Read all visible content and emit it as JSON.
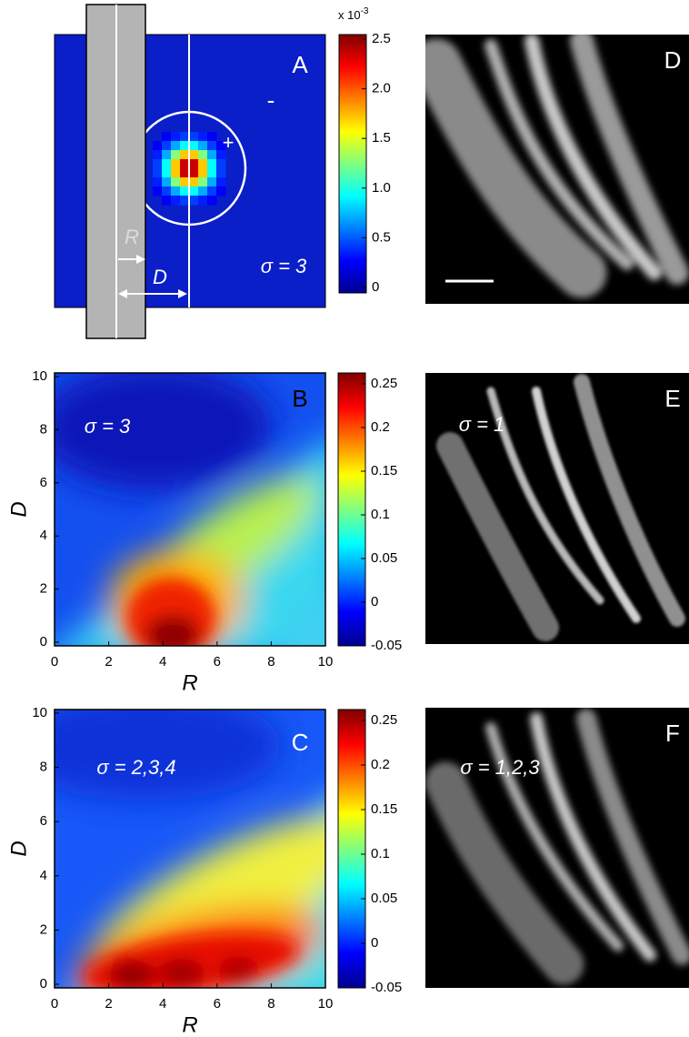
{
  "panel_a": {
    "label": "A",
    "colorbar_exponent": {
      "base": "x 10",
      "exponent": "-3"
    },
    "colorbar_ticks": [
      "2.5",
      "2.0",
      "1.5",
      "1.0",
      "0.5",
      "0"
    ],
    "minus_sign": "-",
    "plus_sign": "+",
    "r_label": "R",
    "d_label": "D",
    "sigma": "σ = 3"
  },
  "panel_b": {
    "label": "B",
    "sigma": "σ = 3",
    "x_label": "R",
    "y_label": "D",
    "x_ticks": [
      "0",
      "2",
      "4",
      "6",
      "8",
      "10"
    ],
    "y_ticks": [
      "0",
      "2",
      "4",
      "6",
      "8",
      "10"
    ],
    "colorbar_ticks": [
      "0.25",
      "0.2",
      "0.15",
      "0.1",
      "0.05",
      "0",
      "-0.05"
    ]
  },
  "panel_c": {
    "label": "C",
    "sigma": "σ = 2,3,4",
    "x_label": "R",
    "y_label": "D",
    "x_ticks": [
      "0",
      "2",
      "4",
      "6",
      "8",
      "10"
    ],
    "y_ticks": [
      "0",
      "2",
      "4",
      "6",
      "8",
      "10"
    ],
    "colorbar_ticks": [
      "0.25",
      "0.2",
      "0.15",
      "0.1",
      "0.05",
      "0",
      "-0.05"
    ]
  },
  "panel_d": {
    "label": "D"
  },
  "panel_e": {
    "label": "E",
    "sigma": "σ = 1"
  },
  "panel_f": {
    "label": "F",
    "sigma": "σ = 1,2,3"
  }
}
